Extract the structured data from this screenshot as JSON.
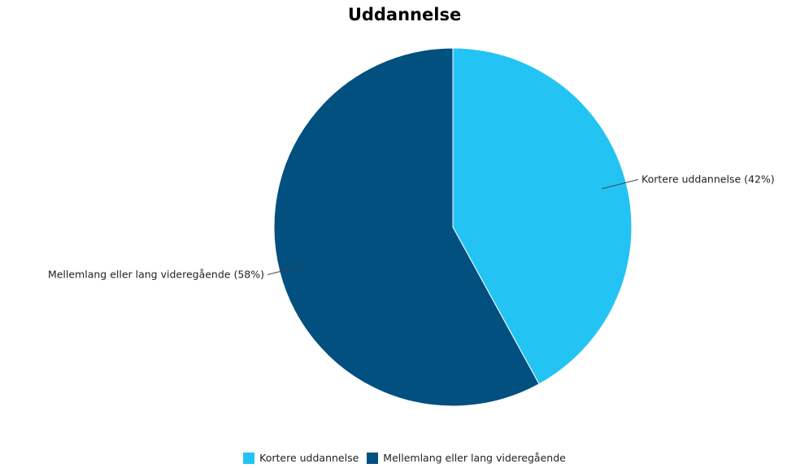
{
  "chart_data": {
    "type": "pie",
    "title": "Uddannelse",
    "categories": [
      "Kortere uddannelse",
      "Mellemlang eller lang videregående"
    ],
    "values": [
      42,
      58
    ],
    "unit": "%",
    "slice_labels": [
      "Kortere uddannelse (42%)",
      "Mellemlang eller lang videregående (58%)"
    ],
    "colors": [
      "#23c4f3",
      "#01507f"
    ],
    "legend": {
      "position": "bottom",
      "entries": [
        "Kortere uddannelse",
        "Mellemlang eller lang videregående"
      ]
    }
  }
}
